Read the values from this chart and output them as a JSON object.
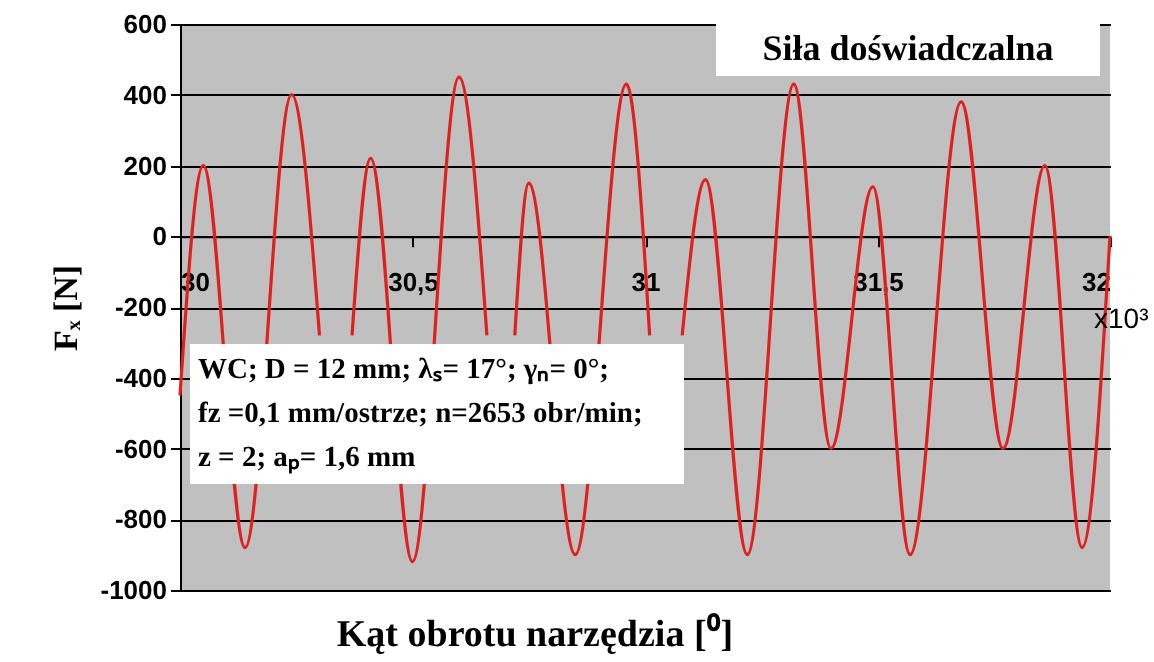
{
  "chart_data": {
    "type": "line",
    "title": "Siła doświadczalna",
    "xlabel": "Kąt obrotu narzędzia [⁰]",
    "ylabel": "Fₓ [N]",
    "annotations": [
      "WC; D = 12 mm; λₛ= 17°; γₙ= 0°;",
      "fz =0,1 mm/ostrze; n=2653 obr/min;",
      "z = 2; aₚ= 1,6 mm",
      "x10³"
    ],
    "x": [
      30.0,
      30.05,
      30.14,
      30.24,
      30.3,
      30.33,
      30.37,
      30.41,
      30.5,
      30.6,
      30.66,
      30.69,
      30.72,
      30.75,
      30.85,
      30.96,
      31.01,
      31.04,
      31.08,
      31.13,
      31.22,
      31.32,
      31.4,
      31.49,
      31.57,
      31.68,
      31.77,
      31.86,
      31.94,
      32.0
    ],
    "series": [
      {
        "color": "#e0201f",
        "values": [
          -450,
          200,
          -880,
          400,
          -280,
          null,
          -280,
          220,
          -920,
          450,
          -280,
          null,
          -280,
          150,
          -900,
          430,
          -280,
          null,
          -280,
          160,
          -900,
          430,
          -600,
          140,
          -900,
          380,
          -600,
          200,
          -880,
          0
        ]
      }
    ],
    "xlim": [
      30,
      32
    ],
    "ylim": [
      -1000,
      600
    ],
    "xticks": [
      30,
      {
        "value": 30.5,
        "label": "30,5"
      },
      31,
      {
        "value": 31.5,
        "label": "31,5"
      },
      32
    ],
    "yticks": [
      -1000,
      -800,
      -600,
      -400,
      -200,
      0,
      200,
      400,
      600
    ],
    "grid": "y",
    "line_style": "solid"
  }
}
